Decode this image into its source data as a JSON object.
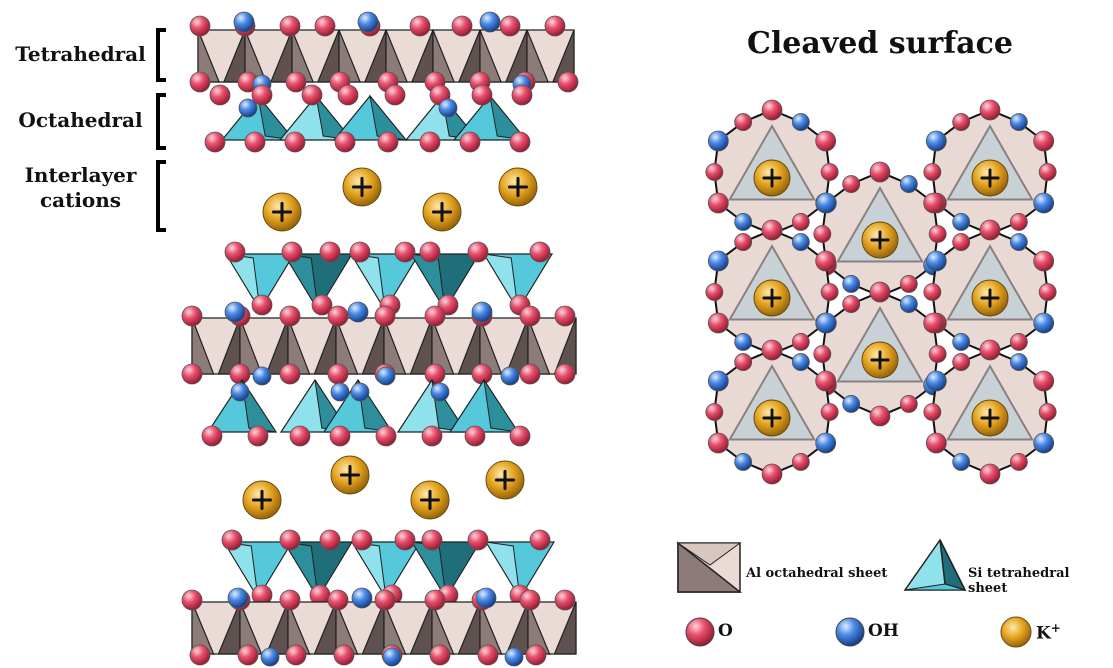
{
  "labels": {
    "tetrahedral": "Tetrahedral",
    "octahedral": "Octahedral",
    "interlayer_line1": "Interlayer",
    "interlayer_line2": "cations"
  },
  "title": "Cleaved surface",
  "legend": {
    "al_octahedral": "Al octahedral sheet",
    "si_tetrahedral": "Si tetrahedral sheet",
    "o": "O",
    "oh": "OH",
    "k": "K",
    "k_charge": "+"
  },
  "colors": {
    "octahedron_light": "#eadbd6",
    "octahedron_dark": "#8c7b78",
    "tetra_light": "#8fe1ec",
    "tetra_mid": "#55c8db",
    "tetra_dark": "#1f6f7a",
    "oxygen": "#e0405e",
    "hydroxyl": "#3a7fe0",
    "potassium": "#e3a21e",
    "surface_fill": "#e8d9d5",
    "triangle_fill": "#c8d2d6"
  }
}
